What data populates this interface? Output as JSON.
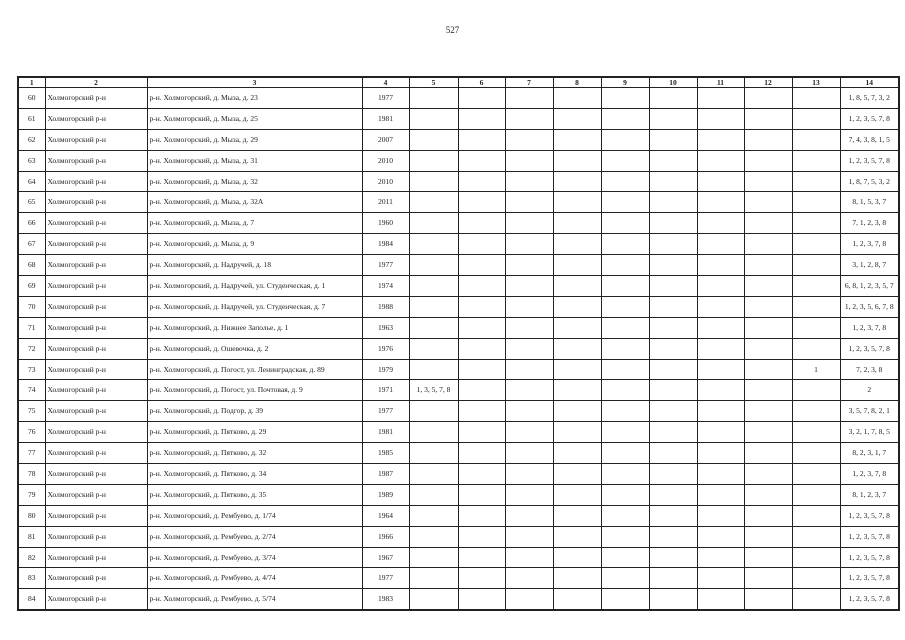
{
  "page_number": "527",
  "headers": [
    "1",
    "2",
    "3",
    "4",
    "5",
    "6",
    "7",
    "8",
    "9",
    "10",
    "11",
    "12",
    "13",
    "14"
  ],
  "rows": [
    {
      "n": "60",
      "district": "Холмогорский р-н",
      "address": "р-н. Холмогорский, д. Мыза, д. 23",
      "year": "1977",
      "c5": "",
      "c13": "",
      "c14": "1, 8, 5, 7, 3, 2"
    },
    {
      "n": "61",
      "district": "Холмогорский р-н",
      "address": "р-н. Холмогорский, д. Мыза, д. 25",
      "year": "1981",
      "c5": "",
      "c13": "",
      "c14": "1, 2, 3, 5, 7, 8"
    },
    {
      "n": "62",
      "district": "Холмогорский р-н",
      "address": "р-н. Холмогорский, д. Мыза, д. 29",
      "year": "2007",
      "c5": "",
      "c13": "",
      "c14": "7, 4, 3, 8, 1, 5"
    },
    {
      "n": "63",
      "district": "Холмогорский р-н",
      "address": "р-н. Холмогорский, д. Мыза, д. 31",
      "year": "2010",
      "c5": "",
      "c13": "",
      "c14": "1, 2, 3, 5, 7, 8"
    },
    {
      "n": "64",
      "district": "Холмогорский р-н",
      "address": "р-н. Холмогорский, д. Мыза, д. 32",
      "year": "2010",
      "c5": "",
      "c13": "",
      "c14": "1, 8, 7, 5, 3, 2"
    },
    {
      "n": "65",
      "district": "Холмогорский р-н",
      "address": "р-н. Холмогорский, д. Мыза, д. 32А",
      "year": "2011",
      "c5": "",
      "c13": "",
      "c14": "8, 1, 5, 3, 7"
    },
    {
      "n": "66",
      "district": "Холмогорский р-н",
      "address": "р-н. Холмогорский, д. Мыза, д. 7",
      "year": "1960",
      "c5": "",
      "c13": "",
      "c14": "7, 1, 2, 3, 8"
    },
    {
      "n": "67",
      "district": "Холмогорский р-н",
      "address": "р-н. Холмогорский, д. Мыза, д. 9",
      "year": "1984",
      "c5": "",
      "c13": "",
      "c14": "1, 2, 3, 7, 8"
    },
    {
      "n": "68",
      "district": "Холмогорский р-н",
      "address": "р-н. Холмогорский, д. Надручей, д. 18",
      "year": "1977",
      "c5": "",
      "c13": "",
      "c14": "3, 1, 2, 8, 7"
    },
    {
      "n": "69",
      "district": "Холмогорский р-н",
      "address": "р-н. Холмогорский, д. Надручей, ул. Студенческая, д. 1",
      "year": "1974",
      "c5": "",
      "c13": "",
      "c14": "6, 8, 1, 2, 3, 5, 7"
    },
    {
      "n": "70",
      "district": "Холмогорский р-н",
      "address": "р-н. Холмогорский, д. Надручей, ул. Студенческая, д. 7",
      "year": "1988",
      "c5": "",
      "c13": "",
      "c14": "1, 2, 3, 5, 6, 7, 8"
    },
    {
      "n": "71",
      "district": "Холмогорский р-н",
      "address": "р-н. Холмогорский, д. Нижнее Заполье, д. 1",
      "year": "1963",
      "c5": "",
      "c13": "",
      "c14": "1, 2, 3, 7, 8"
    },
    {
      "n": "72",
      "district": "Холмогорский р-н",
      "address": "р-н. Холмогорский, д. Ошевочка, д. 2",
      "year": "1976",
      "c5": "",
      "c13": "",
      "c14": "1, 2, 3, 5, 7, 8"
    },
    {
      "n": "73",
      "district": "Холмогорский р-н",
      "address": "р-н. Холмогорский, д. Погост, ул. Ленинградская, д. 89",
      "year": "1979",
      "c5": "",
      "c13": "1",
      "c14": "7, 2, 3, 8"
    },
    {
      "n": "74",
      "district": "Холмогорский р-н",
      "address": "р-н. Холмогорский, д. Погост, ул. Почтовая, д. 9",
      "year": "1971",
      "c5": "1, 3, 5, 7, 8",
      "c13": "",
      "c14": "2"
    },
    {
      "n": "75",
      "district": "Холмогорский р-н",
      "address": "р-н. Холмогорский, д. Подгор, д. 39",
      "year": "1977",
      "c5": "",
      "c13": "",
      "c14": "3, 5, 7, 8, 2, 1"
    },
    {
      "n": "76",
      "district": "Холмогорский р-н",
      "address": "р-н. Холмогорский, д. Пятково, д. 29",
      "year": "1981",
      "c5": "",
      "c13": "",
      "c14": "3, 2, 1, 7, 8, 5"
    },
    {
      "n": "77",
      "district": "Холмогорский р-н",
      "address": "р-н. Холмогорский, д. Пятково, д. 32",
      "year": "1985",
      "c5": "",
      "c13": "",
      "c14": "8, 2, 3, 1, 7"
    },
    {
      "n": "78",
      "district": "Холмогорский р-н",
      "address": "р-н. Холмогорский, д. Пятково, д. 34",
      "year": "1987",
      "c5": "",
      "c13": "",
      "c14": "1, 2, 3, 7, 8"
    },
    {
      "n": "79",
      "district": "Холмогорский р-н",
      "address": "р-н. Холмогорский, д. Пятково, д. 35",
      "year": "1989",
      "c5": "",
      "c13": "",
      "c14": "8, 1, 2, 3, 7"
    },
    {
      "n": "80",
      "district": "Холмогорский р-н",
      "address": "р-н. Холмогорский, д. Рембуево, д. 1/74",
      "year": "1964",
      "c5": "",
      "c13": "",
      "c14": "1, 2, 3, 5, 7, 8"
    },
    {
      "n": "81",
      "district": "Холмогорский р-н",
      "address": "р-н. Холмогорский, д. Рембуево, д. 2/74",
      "year": "1966",
      "c5": "",
      "c13": "",
      "c14": "1, 2, 3, 5, 7, 8"
    },
    {
      "n": "82",
      "district": "Холмогорский р-н",
      "address": "р-н. Холмогорский, д. Рембуево, д. 3/74",
      "year": "1967",
      "c5": "",
      "c13": "",
      "c14": "1, 2, 3, 5, 7, 8"
    },
    {
      "n": "83",
      "district": "Холмогорский р-н",
      "address": "р-н. Холмогорский, д. Рембуево, д. 4/74",
      "year": "1977",
      "c5": "",
      "c13": "",
      "c14": "1, 2, 3, 5, 7, 8"
    },
    {
      "n": "84",
      "district": "Холмогорский р-н",
      "address": "р-н. Холмогорский, д. Рембуево, д. 5/74",
      "year": "1983",
      "c5": "",
      "c13": "",
      "c14": "1, 2, 3, 5, 7, 8"
    }
  ]
}
